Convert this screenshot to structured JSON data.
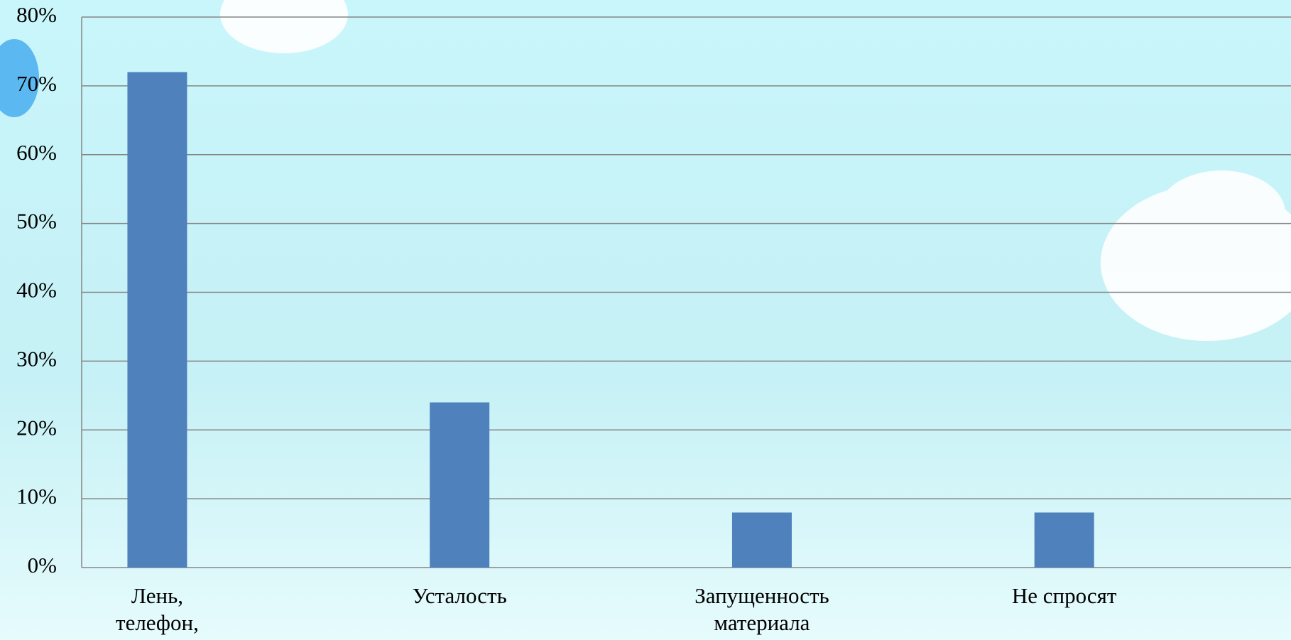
{
  "chart_data": {
    "type": "bar",
    "categories": [
      "Лень, телефон,",
      "Усталость",
      "Запущенность материала",
      "Не спросят"
    ],
    "values": [
      72,
      24,
      8,
      8
    ],
    "color": "#4f81bd",
    "ylim": [
      0,
      80
    ],
    "yticks": [
      {
        "value": 0,
        "label": "0%"
      },
      {
        "value": 10,
        "label": "10%"
      },
      {
        "value": 20,
        "label": "20%"
      },
      {
        "value": 30,
        "label": "30%"
      },
      {
        "value": 40,
        "label": "40%"
      },
      {
        "value": 50,
        "label": "50%"
      },
      {
        "value": 60,
        "label": "60%"
      },
      {
        "value": 70,
        "label": "70%"
      },
      {
        "value": 80,
        "label": "80%"
      }
    ],
    "grid": true
  }
}
